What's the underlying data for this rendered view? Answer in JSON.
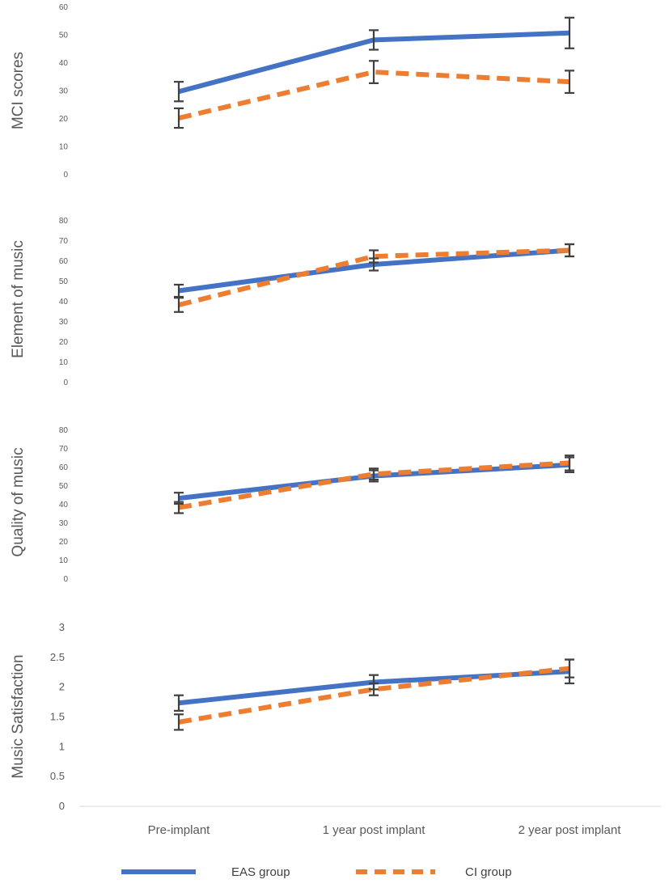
{
  "chart_data": {
    "type": "line",
    "categories": [
      "Pre-implant",
      "1 year post implant",
      "2 year post implant"
    ],
    "legend": [
      {
        "name": "EAS group",
        "color": "#4472C4",
        "style": "solid"
      },
      {
        "name": "CI group",
        "color": "#ED7D31",
        "style": "dashed"
      }
    ],
    "legend_position": "bottom",
    "error_bar_color": "#404040",
    "panels": [
      {
        "ylabel": "MCI scores",
        "ylim": [
          0,
          60
        ],
        "yticks": [
          "0",
          "10",
          "20",
          "30",
          "40",
          "50",
          "60"
        ],
        "series": [
          {
            "name": "EAS group",
            "values": [
              29.5,
              48,
              50.5
            ],
            "err": [
              3.5,
              3.5,
              5.5
            ]
          },
          {
            "name": "CI group",
            "values": [
              20,
              36.5,
              33
            ],
            "err": [
              3.5,
              4,
              4
            ]
          }
        ]
      },
      {
        "ylabel": "Element of music",
        "ylim": [
          0,
          80
        ],
        "yticks": [
          "0",
          "10",
          "20",
          "30",
          "40",
          "50",
          "60",
          "70",
          "80"
        ],
        "series": [
          {
            "name": "EAS group",
            "values": [
              45,
              58,
              65
            ],
            "err": [
              3,
              3,
              3
            ]
          },
          {
            "name": "CI group",
            "values": [
              38,
              62,
              65
            ],
            "err": [
              3.5,
              3,
              3
            ]
          }
        ]
      },
      {
        "ylabel": "Quality of music",
        "ylim": [
          0,
          80
        ],
        "yticks": [
          "0",
          "10",
          "20",
          "30",
          "40",
          "50",
          "60",
          "70",
          "80"
        ],
        "series": [
          {
            "name": "EAS group",
            "values": [
              43,
              55,
              61
            ],
            "err": [
              3,
              3,
              4
            ]
          },
          {
            "name": "CI group",
            "values": [
              38,
              56,
              62
            ],
            "err": [
              3,
              3,
              4
            ]
          }
        ]
      },
      {
        "ylabel": "Music Satisfaction",
        "ylim": [
          0,
          3
        ],
        "yticks": [
          "0",
          "0.5",
          "1",
          "1.5",
          "2",
          "2.5",
          "3"
        ],
        "series": [
          {
            "name": "EAS group",
            "values": [
              1.72,
              2.07,
              2.25
            ],
            "err": [
              0.13,
              0.12,
              0.2
            ]
          },
          {
            "name": "CI group",
            "values": [
              1.4,
              1.95,
              2.3
            ],
            "err": [
              0.13,
              0.1,
              0.15
            ]
          }
        ]
      }
    ]
  }
}
